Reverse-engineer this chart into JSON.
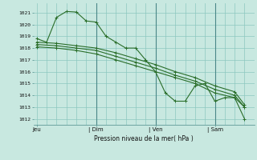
{
  "background_color": "#c8e8e0",
  "grid_color": "#8cc8c0",
  "line_color": "#2a6e2a",
  "title": "Pression niveau de la mer( hPa )",
  "ylim": [
    1011.5,
    1021.8
  ],
  "yticks": [
    1012,
    1013,
    1014,
    1015,
    1016,
    1017,
    1018,
    1019,
    1020,
    1021
  ],
  "xtick_labels": [
    "Jeu",
    "| Dim",
    "| Ven",
    "| Sam"
  ],
  "xtick_positions": [
    0,
    18,
    36,
    54
  ],
  "xlim": [
    -1,
    66
  ],
  "vlines": [
    18,
    36,
    54
  ],
  "series": [
    {
      "x": [
        0,
        3,
        6,
        9,
        12,
        15,
        18,
        21,
        24,
        27,
        30,
        33,
        36,
        39,
        42,
        45,
        48,
        51,
        54,
        57,
        60,
        63
      ],
      "y": [
        1018.8,
        1018.5,
        1020.6,
        1021.1,
        1021.05,
        1020.3,
        1020.2,
        1019.0,
        1018.5,
        1018.0,
        1018.0,
        1017.0,
        1016.0,
        1014.2,
        1013.5,
        1013.5,
        1014.8,
        1015.0,
        1013.5,
        1013.8,
        1013.8,
        1013.0
      ]
    },
    {
      "x": [
        0,
        6,
        12,
        18,
        24,
        30,
        36,
        42,
        48,
        54,
        60,
        63
      ],
      "y": [
        1018.1,
        1018.0,
        1017.8,
        1017.5,
        1017.0,
        1016.5,
        1016.0,
        1015.5,
        1015.0,
        1014.2,
        1013.8,
        1012.0
      ]
    },
    {
      "x": [
        0,
        6,
        12,
        18,
        24,
        30,
        36,
        42,
        48,
        54,
        60,
        63
      ],
      "y": [
        1018.3,
        1018.2,
        1018.0,
        1017.8,
        1017.3,
        1016.8,
        1016.3,
        1015.7,
        1015.2,
        1014.5,
        1014.0,
        1013.0
      ]
    },
    {
      "x": [
        0,
        6,
        12,
        18,
        24,
        30,
        36,
        42,
        48,
        54,
        60,
        63
      ],
      "y": [
        1018.5,
        1018.4,
        1018.2,
        1018.0,
        1017.6,
        1017.1,
        1016.6,
        1016.0,
        1015.5,
        1014.8,
        1014.3,
        1013.2
      ]
    }
  ]
}
